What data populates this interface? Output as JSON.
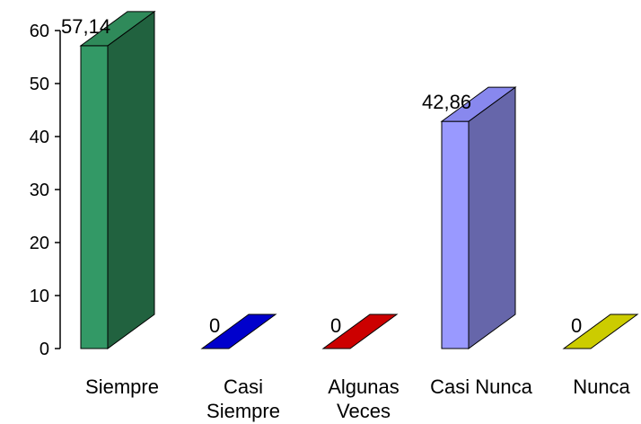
{
  "chart_data": {
    "type": "bar",
    "categories": [
      [
        "Siempre"
      ],
      [
        "Casi",
        "Siempre"
      ],
      [
        "Algunas",
        "Veces"
      ],
      [
        "Casi Nunca"
      ],
      [
        "Nunca"
      ]
    ],
    "values": [
      57.14,
      0,
      0,
      42.86,
      0
    ],
    "data_labels": [
      "57,14",
      "0",
      "0",
      "42,86",
      "0"
    ],
    "colors": [
      {
        "front": "#339966",
        "side": "#21623f",
        "top": "#2f8a5a"
      },
      {
        "front": "#0000cc",
        "side": "#000099",
        "top": "#0000cc"
      },
      {
        "front": "#cc0000",
        "side": "#990000",
        "top": "#cc0000"
      },
      {
        "front": "#9999ff",
        "side": "#6666aa",
        "top": "#8888ee"
      },
      {
        "front": "#cccc00",
        "side": "#999900",
        "top": "#cccc00"
      }
    ],
    "ylim": [
      0,
      60
    ],
    "yticks": [
      0,
      10,
      20,
      30,
      40,
      50,
      60
    ],
    "grid": false,
    "legend": "none",
    "style": "3d-column"
  }
}
